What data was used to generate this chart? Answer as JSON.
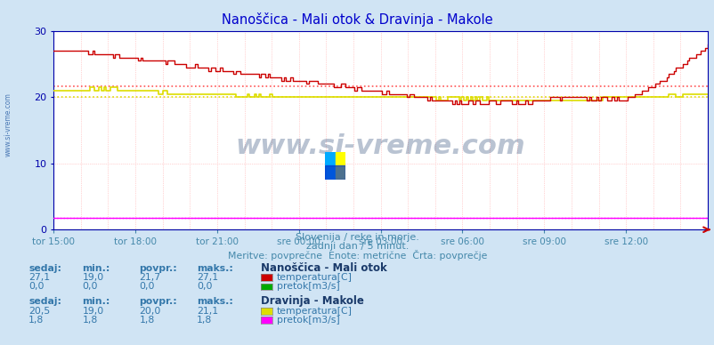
{
  "title": "Nanoščica - Mali otok & Dravinja - Makole",
  "bg_color": "#d0e4f4",
  "plot_bg_color": "#ffffff",
  "grid_color": "#ffaaaa",
  "title_color": "#0000cc",
  "axis_color": "#0000aa",
  "text_color": "#0000aa",
  "xlabel_color": "#4488aa",
  "ylim": [
    0,
    30
  ],
  "yticks": [
    0,
    10,
    20,
    30
  ],
  "x_labels": [
    "tor 15:00",
    "tor 18:00",
    "tor 21:00",
    "sre 00:00",
    "sre 03:00",
    "sre 06:00",
    "sre 09:00",
    "sre 12:00"
  ],
  "n_points": 288,
  "nano_temp_avg": 21.7,
  "drav_temp_avg": 20.0,
  "drav_flow_value": 1.8,
  "nano_temp_color": "#cc0000",
  "nano_temp_avg_color": "#ff5555",
  "nano_flow_color": "#00aa00",
  "drav_temp_color": "#dddd00",
  "drav_temp_avg_color": "#dddd00",
  "drav_flow_color": "#ff00ff",
  "watermark": "www.si-vreme.com",
  "subtitle1": "Slovenija / reke in morje.",
  "subtitle2": "zadnji dan / 5 minut.",
  "subtitle3": "Meritve: povprečne  Enote: metrične  Črta: povprečje",
  "legend1_title": "Nanoščica - Mali otok",
  "legend2_title": "Dravinja - Makole",
  "stats_headers": [
    "sedaj:",
    "min.:",
    "povpr.:",
    "maks.:"
  ],
  "stats1_temp": [
    "27,1",
    "19,0",
    "21,7",
    "27,1"
  ],
  "stats1_flow": [
    "0,0",
    "0,0",
    "0,0",
    "0,0"
  ],
  "stats2_temp": [
    "20,5",
    "19,0",
    "20,0",
    "21,1"
  ],
  "stats2_flow": [
    "1,8",
    "1,8",
    "1,8",
    "1,8"
  ],
  "label_temp": "temperatura[C]",
  "label_flow": "pretok[m3/s]"
}
